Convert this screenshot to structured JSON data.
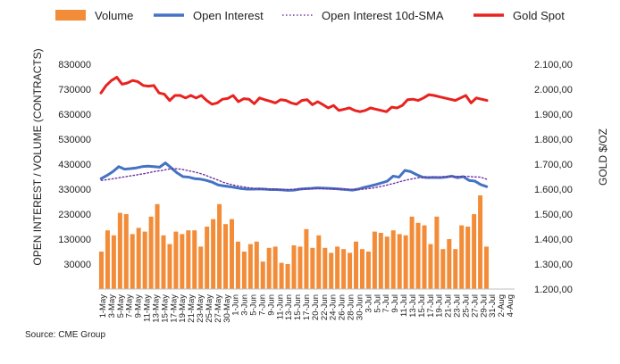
{
  "chart_data": {
    "type": "bar+line",
    "source": "Source: CME Group",
    "legend": {
      "position": "top",
      "items": [
        {
          "label": "Volume",
          "kind": "bar",
          "color": "#F28C38"
        },
        {
          "label": "Open Interest",
          "kind": "line",
          "color": "#4472C4"
        },
        {
          "label": "Open Interest 10d-SMA",
          "kind": "dotted",
          "color": "#7030A0"
        },
        {
          "label": "Gold Spot",
          "kind": "line",
          "color": "#E8231F"
        }
      ]
    },
    "y_left": {
      "label": "OPEN INTEREST / VOLUME (CONTRACTS)",
      "min": 30000,
      "max": 930000,
      "ticks": [
        "830000",
        "730000",
        "630000",
        "530000",
        "430000",
        "330000",
        "230000",
        "130000",
        "30000"
      ]
    },
    "y_right": {
      "label": "GOLD $/OZ",
      "min": 1200,
      "max": 2100,
      "ticks": [
        "2.100,00",
        "2.000,00",
        "1.900,00",
        "1.800,00",
        "1.700,00",
        "1.600,00",
        "1.500,00",
        "1.400,00",
        "1.300,00",
        "1.200,00"
      ]
    },
    "x_labels": [
      "1-May",
      "3-May",
      "5-May",
      "7-May",
      "9-May",
      "11-May",
      "13-May",
      "15-May",
      "17-May",
      "19-May",
      "21-May",
      "23-May",
      "25-May",
      "27-May",
      "30-May",
      "1-Jun",
      "3-Jun",
      "5-Jun",
      "7-Jun",
      "9-Jun",
      "11-Jun",
      "13-Jun",
      "15-Jun",
      "17-Jun",
      "20-Jun",
      "22-Jun",
      "24-Jun",
      "26-Jun",
      "28-Jun",
      "30-Jun",
      "3-Jul",
      "5-Jul",
      "7-Jul",
      "9-Jul",
      "11-Jul",
      "13-Jul",
      "15-Jul",
      "17-Jul",
      "19-Jul",
      "21-Jul",
      "23-Jul",
      "25-Jul",
      "27-Jul",
      "29-Jul",
      "31-Jul",
      "2-Aug",
      "4-Aug"
    ],
    "series": [
      {
        "name": "Volume",
        "axis": "left",
        "values": [
          180000,
          265000,
          245000,
          335000,
          330000,
          250000,
          275000,
          260000,
          320000,
          370000,
          245000,
          210000,
          260000,
          250000,
          265000,
          265000,
          200000,
          280000,
          310000,
          370000,
          290000,
          310000,
          220000,
          180000,
          210000,
          220000,
          140000,
          195000,
          200000,
          135000,
          130000,
          205000,
          200000,
          270000,
          195000,
          245000,
          195000,
          175000,
          200000,
          190000,
          175000,
          220000,
          190000,
          180000,
          260000,
          255000,
          240000,
          265000,
          250000,
          245000,
          320000,
          295000,
          285000,
          210000,
          320000,
          190000,
          230000,
          190000,
          285000,
          280000,
          330000,
          405000,
          200000
        ]
      },
      {
        "name": "Open Interest",
        "axis": "left",
        "values": [
          472000,
          485000,
          500000,
          520000,
          510000,
          512000,
          515000,
          520000,
          522000,
          520000,
          518000,
          535000,
          515000,
          495000,
          480000,
          478000,
          472000,
          470000,
          465000,
          458000,
          447000,
          443000,
          440000,
          436000,
          432000,
          430000,
          430000,
          431000,
          430000,
          428000,
          428000,
          427000,
          425000,
          426000,
          430000,
          432000,
          433000,
          435000,
          434000,
          433000,
          432000,
          430000,
          428000,
          426000,
          430000,
          437000,
          442000,
          448000,
          455000,
          462000,
          482000,
          478000,
          505000,
          500000,
          488000,
          478000,
          476000,
          477000,
          476000,
          478000,
          482000,
          476000,
          480000,
          465000,
          462000,
          448000,
          440000
        ]
      },
      {
        "name": "Open Interest 10d-SMA",
        "axis": "left",
        "values": [
          465000,
          468000,
          472000,
          476000,
          480000,
          484000,
          488000,
          492000,
          497000,
          502000,
          505000,
          510000,
          512000,
          510000,
          505000,
          500000,
          494000,
          486000,
          476000,
          467000,
          457000,
          450000,
          444000,
          440000,
          436000,
          433000,
          431000,
          430000,
          430000,
          428000,
          428000,
          429000,
          430000,
          430000,
          431000,
          432000,
          432000,
          431000,
          431000,
          430000,
          430000,
          429000,
          428000,
          430000,
          433000,
          437000,
          442000,
          448000,
          454000,
          461000,
          467000,
          472000,
          476000,
          478000,
          479000,
          479000,
          480000,
          480000,
          481000,
          481000,
          481000,
          479000,
          478000,
          470000
        ]
      },
      {
        "name": "Gold Spot",
        "axis": "right",
        "values": [
          1985,
          2015,
          2035,
          2048,
          2020,
          2025,
          2035,
          2030,
          2015,
          2012,
          2015,
          1985,
          1980,
          1955,
          1975,
          1975,
          1965,
          1975,
          1965,
          1975,
          1955,
          1940,
          1945,
          1960,
          1963,
          1975,
          1950,
          1962,
          1960,
          1942,
          1965,
          1958,
          1952,
          1945,
          1958,
          1955,
          1945,
          1940,
          1955,
          1958,
          1938,
          1950,
          1938,
          1925,
          1935,
          1915,
          1920,
          1925,
          1915,
          1910,
          1915,
          1925,
          1920,
          1915,
          1910,
          1928,
          1925,
          1935,
          1958,
          1960,
          1955,
          1965,
          1978,
          1975,
          1970,
          1965,
          1960,
          1955,
          1965,
          1975,
          1945,
          1965,
          1960,
          1955
        ]
      }
    ]
  }
}
